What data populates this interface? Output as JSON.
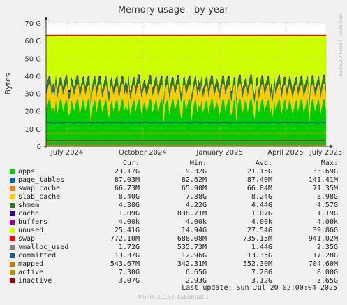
{
  "chart_data": {
    "type": "area",
    "title": "Memory usage - by year",
    "ylabel": "Bytes",
    "side_label": "RRDTOOL / TOBI OETIKER",
    "ylim": [
      0,
      70
    ],
    "yunit": "G",
    "y_ticks": [
      "0",
      "10 G",
      "20 G",
      "30 G",
      "40 G",
      "50 G",
      "60 G",
      "70 G"
    ],
    "x_ticks": [
      "July 2024",
      "October 2024",
      "January 2025",
      "April 2025",
      "July 2025"
    ],
    "grid": true,
    "total_memory_line_gb": 63,
    "stack_order_bottom_to_top": [
      "apps",
      "page_tables",
      "swap_cache",
      "slab_cache",
      "shmem",
      "cache",
      "buffers",
      "unused"
    ],
    "series": [
      {
        "name": "apps",
        "color": "#00cc00",
        "cur": "23.17G",
        "min": "9.32G",
        "avg": "21.15G",
        "max": "33.69G"
      },
      {
        "name": "page_tables",
        "color": "#0066b3",
        "cur": "87.03M",
        "min": "82.62M",
        "avg": "87.40M",
        "max": "141.41M"
      },
      {
        "name": "swap_cache",
        "color": "#ff8000",
        "cur": "66.73M",
        "min": "65.90M",
        "avg": "66.84M",
        "max": "71.35M"
      },
      {
        "name": "slab_cache",
        "color": "#ffcc00",
        "cur": "8.40G",
        "min": "7.88G",
        "avg": "8.24G",
        "max": "8.98G"
      },
      {
        "name": "shmem",
        "color": "#2c7a2c",
        "cur": "4.38G",
        "min": "4.22G",
        "avg": "4.44G",
        "max": "4.57G"
      },
      {
        "name": "cache",
        "color": "#330099",
        "cur": "1.09G",
        "min": "838.71M",
        "avg": "1.07G",
        "max": "1.19G"
      },
      {
        "name": "buffers",
        "color": "#990099",
        "cur": "4.00k",
        "min": "4.00k",
        "avg": "4.00k",
        "max": "4.00k"
      },
      {
        "name": "unused",
        "color": "#ccff00",
        "cur": "25.41G",
        "min": "14.94G",
        "avg": "27.54G",
        "max": "39.86G"
      },
      {
        "name": "swap",
        "color": "#ff0000",
        "cur": "772.10M",
        "min": "688.08M",
        "avg": "735.15M",
        "max": "941.02M"
      },
      {
        "name": "vmalloc_used",
        "color": "#808080",
        "cur": "1.72G",
        "min": "535.73M",
        "avg": "1.44G",
        "max": "2.35G"
      },
      {
        "name": "committed",
        "color": "#1a5c99",
        "cur": "13.37G",
        "min": "12.96G",
        "avg": "13.35G",
        "max": "17.28G"
      },
      {
        "name": "mapped",
        "color": "#cc7a00",
        "cur": "543.67M",
        "min": "342.31M",
        "avg": "552.30M",
        "max": "704.60M"
      },
      {
        "name": "active",
        "color": "#b39200",
        "cur": "7.30G",
        "min": "6.65G",
        "avg": "7.28G",
        "max": "8.00G"
      },
      {
        "name": "inactive",
        "color": "#990000",
        "cur": "3.07G",
        "min": "2.93G",
        "avg": "3.12G",
        "max": "3.65G"
      }
    ]
  },
  "legend": {
    "cur": "Cur:",
    "min": "Min:",
    "avg": "Avg:",
    "max": "Max:"
  },
  "footer": {
    "last_update": "Last update: Sun Jul 20 02:00:04 2025",
    "munin": "Munin 2.0.37-1ubuntu0.1"
  }
}
